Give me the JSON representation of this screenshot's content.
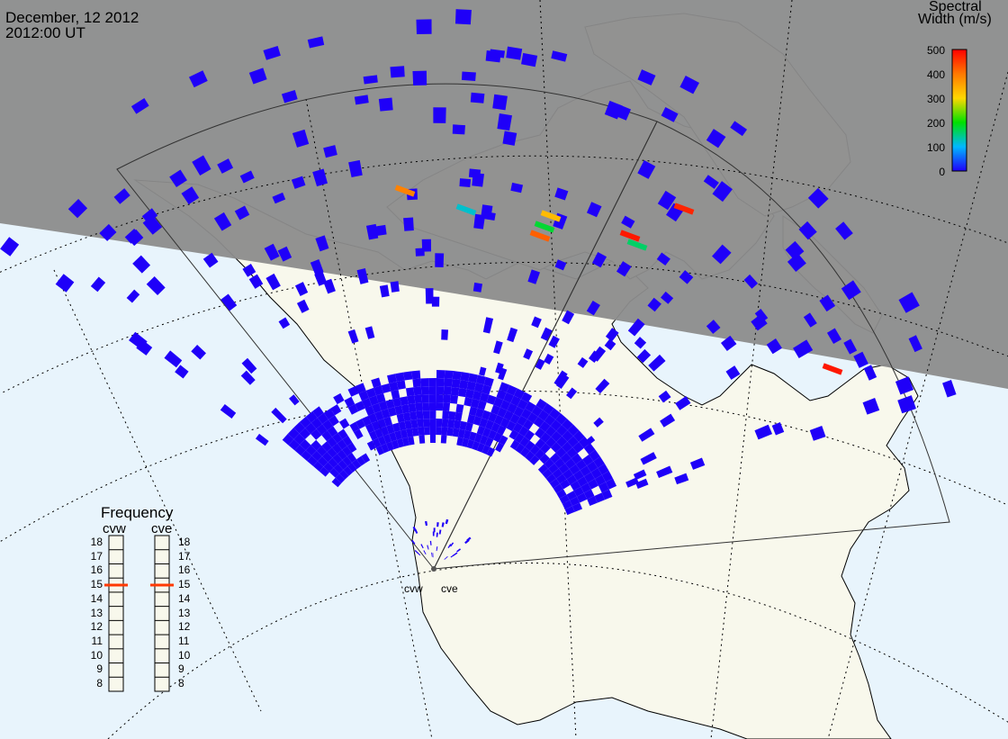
{
  "header": {
    "date": "December, 12 2012",
    "time": "2012:00 UT"
  },
  "colors": {
    "ocean": "#e8f4fc",
    "land": "#f8f8ec",
    "night": "#8c8c8c",
    "coast": "#000000",
    "scatter_base": "#1f00f8"
  },
  "colorbar": {
    "title_line1": "Spectral",
    "title_line2": "Width (m/s)",
    "ticks": [
      "500",
      "400",
      "300",
      "200",
      "100",
      "0"
    ],
    "min": 0,
    "max": 500
  },
  "frequency_panel": {
    "title": "Frequency",
    "radars": [
      {
        "name": "cvw",
        "frequency_mhz": 15
      },
      {
        "name": "cve",
        "frequency_mhz": 15
      }
    ],
    "scale": [
      "18",
      "17",
      "16",
      "15",
      "14",
      "13",
      "12",
      "11",
      "10",
      "9",
      "8"
    ]
  },
  "radar_sites": [
    "cvw",
    "cve"
  ],
  "scatter_colored": [
    {
      "region": "arctic-archipelago-center",
      "spectral_width": 180
    },
    {
      "region": "arctic-archipelago-center",
      "spectral_width": 330
    },
    {
      "region": "arctic-archipelago-center",
      "spectral_width": 420
    },
    {
      "region": "arctic-archipelago-west",
      "spectral_width": 390
    },
    {
      "region": "arctic-archipelago-west",
      "spectral_width": 120
    },
    {
      "region": "hudson-north",
      "spectral_width": 480
    },
    {
      "region": "hudson-north",
      "spectral_width": 160
    },
    {
      "region": "baffin",
      "spectral_width": 470
    },
    {
      "region": "labrador",
      "spectral_width": 480
    }
  ]
}
